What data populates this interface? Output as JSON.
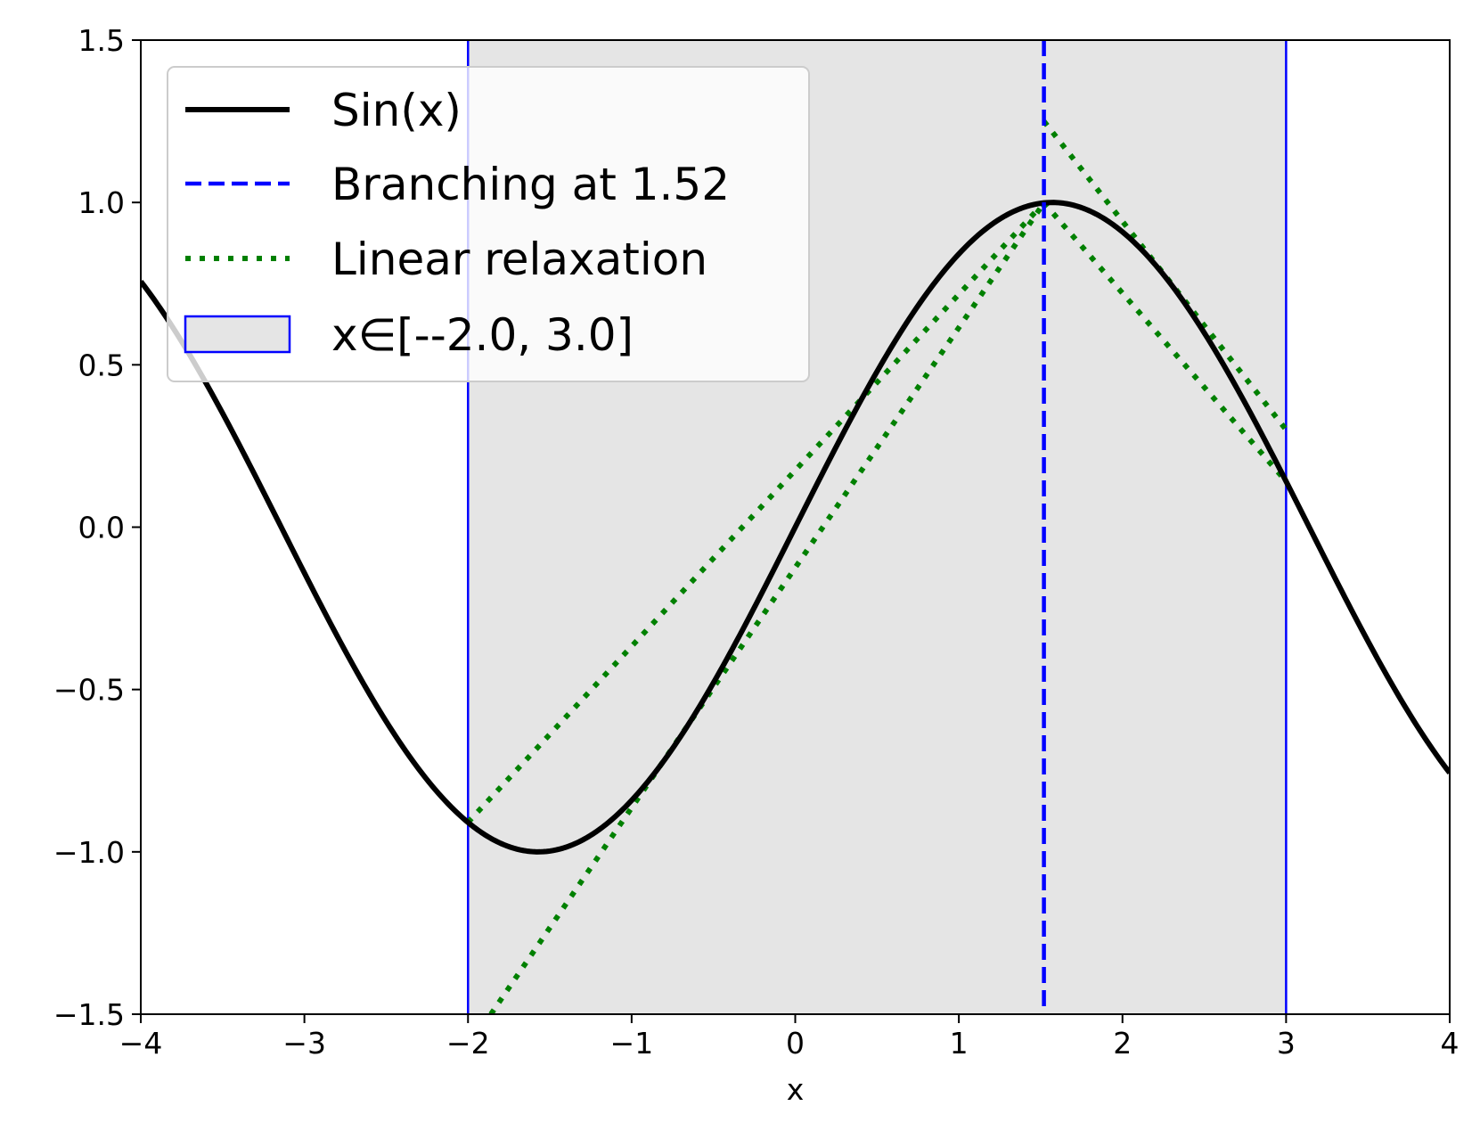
{
  "chart_data": {
    "type": "line",
    "title": "",
    "xlabel": "x",
    "ylabel": "",
    "xlim": [
      -4,
      4
    ],
    "ylim": [
      -1.5,
      1.5
    ],
    "grid": false,
    "legend_position": "top-left",
    "x_ticks": [
      -4,
      -3,
      -2,
      -1,
      0,
      1,
      2,
      3,
      4
    ],
    "x_tick_labels": [
      "−4",
      "−3",
      "−2",
      "−1",
      "0",
      "1",
      "2",
      "3",
      "4"
    ],
    "y_ticks": [
      -1.5,
      -1.0,
      -0.5,
      0.0,
      0.5,
      1.0,
      1.5
    ],
    "y_tick_labels": [
      "−1.5",
      "−1.0",
      "−0.5",
      "0.0",
      "0.5",
      "1.0",
      "1.5"
    ],
    "series": [
      {
        "name": "Sin(x)",
        "function": "sin",
        "x_range": [
          -4,
          4
        ],
        "color": "#000000",
        "style": "solid"
      },
      {
        "name": "Branching at 1.52",
        "kind": "vline",
        "x": 1.52,
        "color": "#0000ff",
        "style": "dashed"
      },
      {
        "name": "Linear relaxation",
        "color": "#008000",
        "style": "dotted",
        "segments": [
          [
            [
              -2.0,
              -0.909
            ],
            [
              1.52,
              0.999
            ]
          ],
          [
            [
              -1.86,
              -1.5
            ],
            [
              1.52,
              0.999
            ]
          ],
          [
            [
              1.52,
              1.25
            ],
            [
              3.0,
              0.3
            ]
          ],
          [
            [
              1.52,
              0.999
            ],
            [
              3.0,
              0.141
            ]
          ]
        ]
      },
      {
        "name": "x∈[--2.0, 3.0]",
        "kind": "vspan",
        "x_range": [
          -2.0,
          3.0
        ],
        "fill_color": "#e5e5e5",
        "edge_color": "#0000ff"
      }
    ]
  }
}
